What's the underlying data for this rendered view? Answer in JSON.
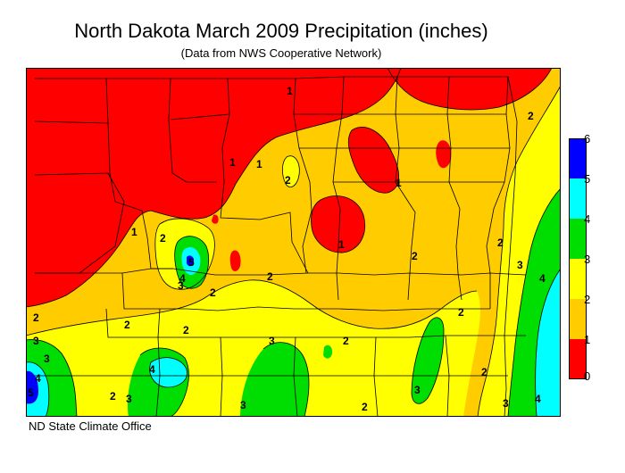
{
  "title": "North Dakota March 2009 Precipitation (inches)",
  "subtitle": "(Data from NWS Cooperative Network)",
  "credit": "ND State Climate Office",
  "legend": {
    "ticks": [
      "6",
      "5",
      "4",
      "3",
      "2",
      "1",
      "0"
    ],
    "bands": [
      {
        "range": "5-6",
        "color": "#0000ff"
      },
      {
        "range": "4-5",
        "color": "#00ffff"
      },
      {
        "range": "3-4",
        "color": "#00dd00"
      },
      {
        "range": "2-3",
        "color": "#ffff00"
      },
      {
        "range": "1-2",
        "color": "#ffcc00"
      },
      {
        "range": "0-1",
        "color": "#ff0000"
      }
    ]
  },
  "contour_labels": [
    "1",
    "1",
    "1",
    "1",
    "1",
    "1",
    "2",
    "2",
    "2",
    "2",
    "2",
    "2",
    "2",
    "2",
    "2",
    "2",
    "2",
    "2",
    "2",
    "2",
    "2",
    "3",
    "3",
    "3",
    "3",
    "3",
    "3",
    "3",
    "3",
    "3",
    "4",
    "4",
    "4",
    "4",
    "4",
    "5",
    "5"
  ]
}
